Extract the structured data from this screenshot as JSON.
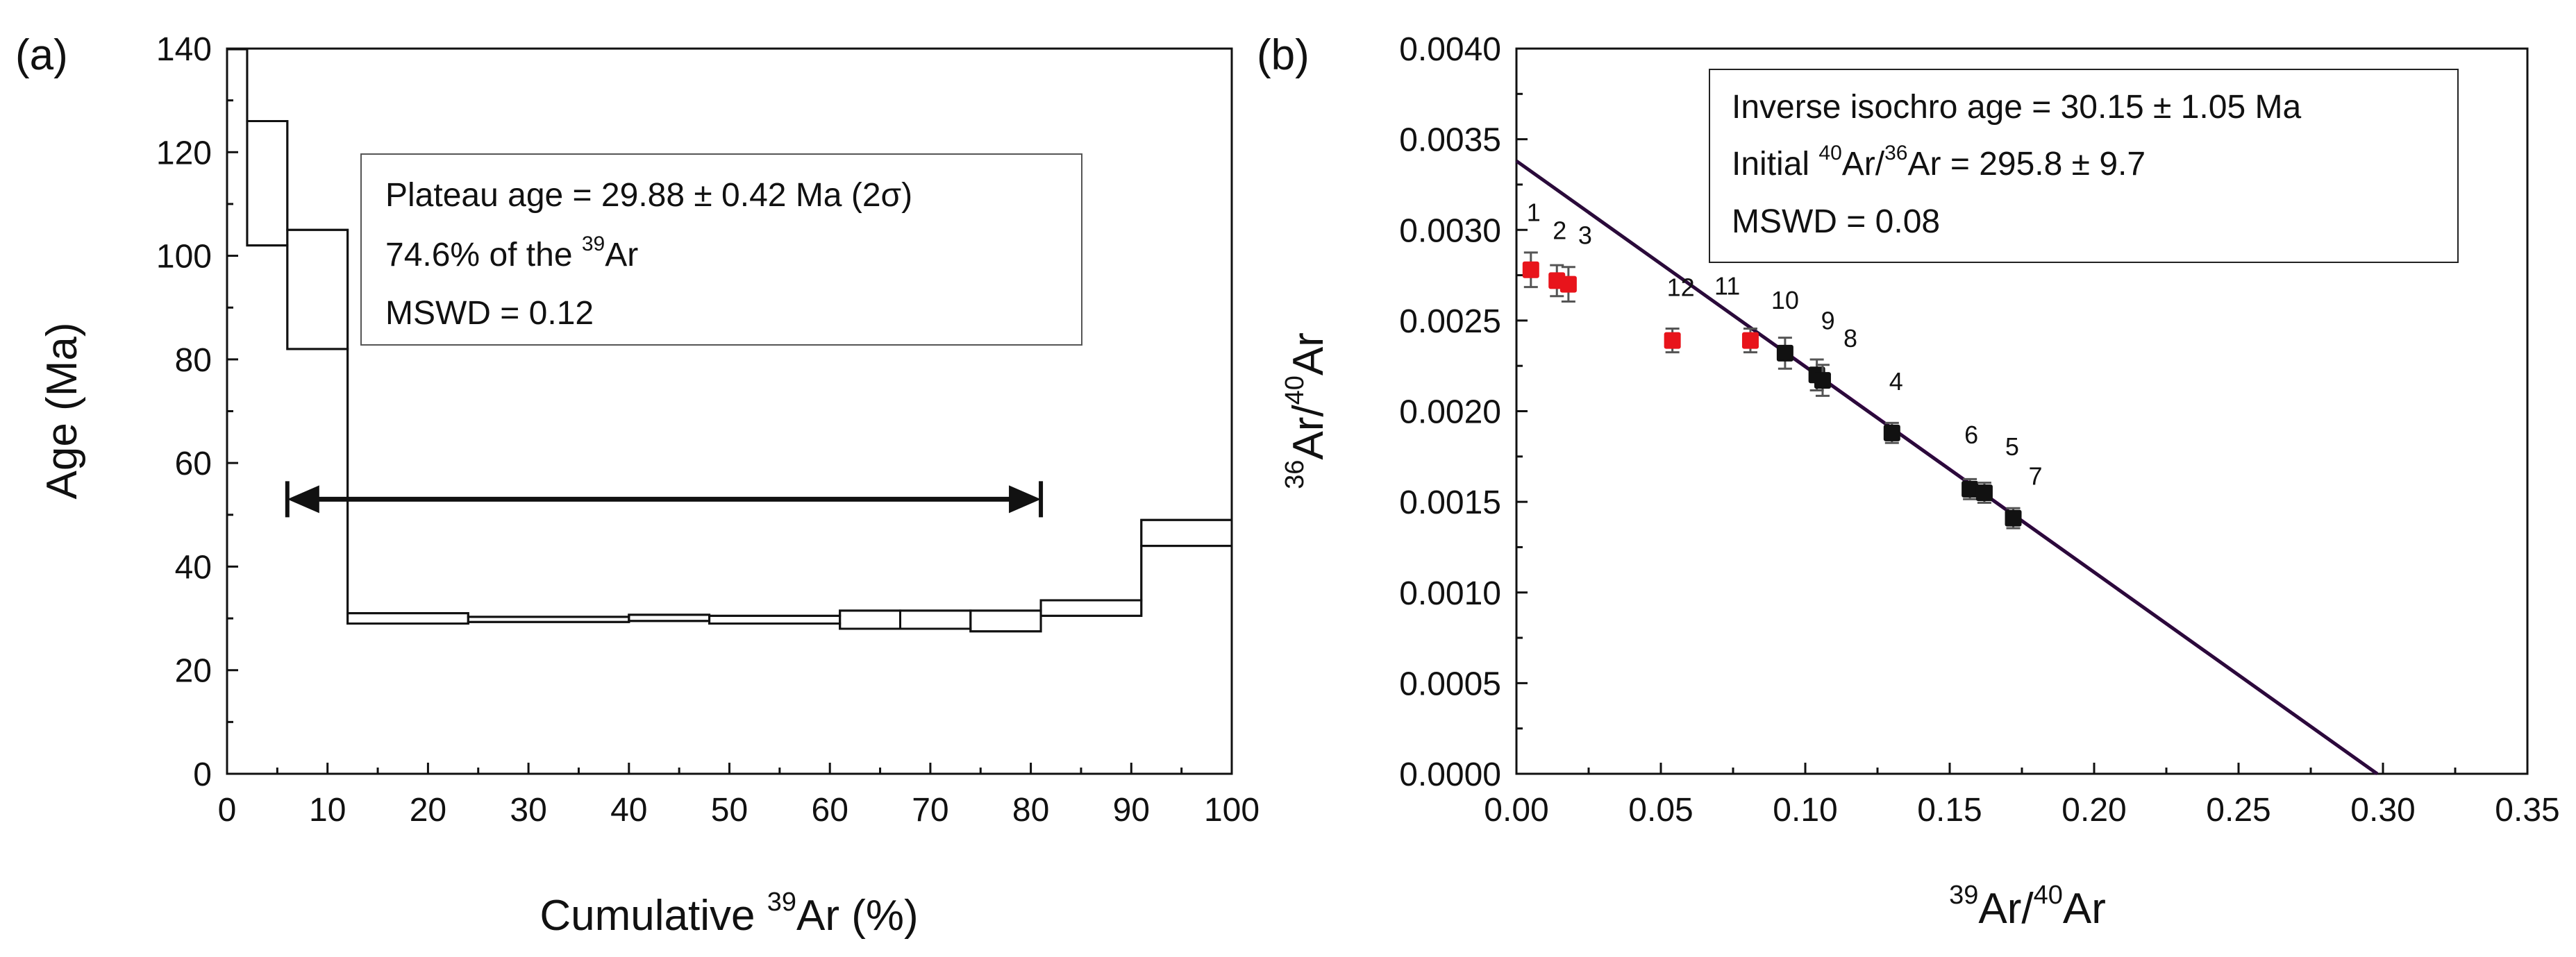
{
  "chart_data": [
    {
      "panel": "(a)",
      "type": "step",
      "xlabel_prefix": "Cumulative ",
      "xlabel_sup": "39",
      "xlabel_suffix": "Ar (%)",
      "ylabel": "Age (Ma)",
      "xlim": [
        0,
        100
      ],
      "ylim": [
        0,
        140
      ],
      "xticks": [
        "0",
        "10",
        "20",
        "30",
        "40",
        "50",
        "60",
        "70",
        "80",
        "90",
        "100"
      ],
      "yticks": [
        "0",
        "20",
        "40",
        "60",
        "80",
        "100",
        "120",
        "140"
      ],
      "steps": [
        {
          "x0": 0,
          "x1": 2,
          "lo": 140,
          "hi": 140
        },
        {
          "x0": 2,
          "x1": 6,
          "lo": 102,
          "hi": 126
        },
        {
          "x0": 6,
          "x1": 12,
          "lo": 82,
          "hi": 105
        },
        {
          "x0": 12,
          "x1": 24,
          "lo": 29,
          "hi": 31
        },
        {
          "x0": 24,
          "x1": 40,
          "lo": 29.3,
          "hi": 30.3
        },
        {
          "x0": 40,
          "x1": 48,
          "lo": 29.5,
          "hi": 30.7
        },
        {
          "x0": 48,
          "x1": 61,
          "lo": 29,
          "hi": 30.5
        },
        {
          "x0": 61,
          "x1": 67,
          "lo": 28,
          "hi": 31.5
        },
        {
          "x0": 67,
          "x1": 74,
          "lo": 28,
          "hi": 31.5
        },
        {
          "x0": 74,
          "x1": 81,
          "lo": 27.5,
          "hi": 31.5
        },
        {
          "x0": 81,
          "x1": 91,
          "lo": 30.5,
          "hi": 33.5
        },
        {
          "x0": 91,
          "x1": 100,
          "lo": 44,
          "hi": 49
        }
      ],
      "plateau_arrow": {
        "x_start": 6,
        "x_end": 81,
        "y": 53
      },
      "legend": {
        "line1": "Plateau age = 29.88 ± 0.42 Ma (2σ)",
        "line2_prefix": "74.6% of the ",
        "line2_sup": "39",
        "line2_suffix": "Ar",
        "line3": "MSWD = 0.12"
      }
    },
    {
      "panel": "(b)",
      "type": "scatter",
      "xlabel_sup1": "39",
      "xlabel_mid": "Ar/",
      "xlabel_sup2": "40",
      "xlabel_end": "Ar",
      "ylabel_sup1": "36",
      "ylabel_mid": "Ar/",
      "ylabel_sup2": "40",
      "ylabel_end": "Ar",
      "xlim": [
        0,
        0.35
      ],
      "ylim": [
        0,
        0.004
      ],
      "xticks": [
        "0.00",
        "0.05",
        "0.10",
        "0.15",
        "0.20",
        "0.25",
        "0.30",
        "0.35"
      ],
      "yticks": [
        "0.0000",
        "0.0005",
        "0.0010",
        "0.0015",
        "0.0020",
        "0.0025",
        "0.0030",
        "0.0035",
        "0.0040"
      ],
      "points": [
        {
          "label": "1",
          "x": 0.005,
          "y": 0.00278,
          "err": 8e-05,
          "color": "#e8141b"
        },
        {
          "label": "2",
          "x": 0.014,
          "y": 0.00272,
          "err": 7e-05,
          "color": "#e8141b"
        },
        {
          "label": "3",
          "x": 0.018,
          "y": 0.0027,
          "err": 8e-05,
          "color": "#e8141b"
        },
        {
          "label": "12",
          "x": 0.054,
          "y": 0.00239,
          "err": 5e-05,
          "color": "#e8141b"
        },
        {
          "label": "11",
          "x": 0.081,
          "y": 0.00239,
          "err": 5e-05,
          "color": "#e8141b"
        },
        {
          "label": "10",
          "x": 0.093,
          "y": 0.00232,
          "err": 7e-05,
          "color": "#111111"
        },
        {
          "label": "9",
          "x": 0.104,
          "y": 0.0022,
          "err": 7e-05,
          "color": "#111111"
        },
        {
          "label": "8",
          "x": 0.106,
          "y": 0.00217,
          "err": 7e-05,
          "color": "#111111"
        },
        {
          "label": "4",
          "x": 0.13,
          "y": 0.00188,
          "err": 4e-05,
          "color": "#111111"
        },
        {
          "label": "6",
          "x": 0.157,
          "y": 0.00157,
          "err": 4e-05,
          "color": "#111111"
        },
        {
          "label": "5",
          "x": 0.162,
          "y": 0.00155,
          "err": 4e-05,
          "color": "#111111"
        },
        {
          "label": "7",
          "x": 0.172,
          "y": 0.00141,
          "err": 4e-05,
          "color": "#111111"
        }
      ],
      "fit_lines": [
        {
          "name": "isochron",
          "x0": 0,
          "y0": 0.00338,
          "x1": 0.298,
          "y1": 0,
          "color": "#2a0a3a"
        },
        {
          "name": "reference",
          "x0": 0.09,
          "y0": 0.00236,
          "x1": 0.298,
          "y1": 0,
          "color": "#d21fd6"
        }
      ],
      "legend": {
        "line1": "Inverse isochro age = 30.15 ± 1.05 Ma",
        "line2_prefix": "Initial ",
        "line2_sup1": "40",
        "line2_mid": "Ar/",
        "line2_sup2": "36",
        "line2_suffix": "Ar = 295.8 ± 9.7",
        "line3": "MSWD = 0.08"
      }
    }
  ]
}
